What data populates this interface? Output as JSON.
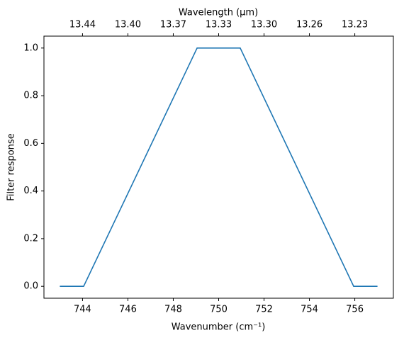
{
  "chart_data": {
    "type": "line",
    "xlabel": "Wavenumber (cm⁻¹)",
    "ylabel": "Filter response",
    "x2label": "Wavelength (μm)",
    "x": [
      743,
      744.05,
      749.05,
      750.95,
      755.95,
      757
    ],
    "series": [
      {
        "color": "#1f77b4",
        "values": [
          0,
          0,
          1,
          1,
          0,
          0
        ]
      }
    ],
    "xlim": [
      742.3,
      757.7
    ],
    "ylim": [
      -0.05,
      1.05
    ],
    "xticks": [
      744,
      746,
      748,
      750,
      752,
      754,
      756
    ],
    "yticks": [
      {
        "value": 0,
        "label": "0.0"
      },
      {
        "value": 0.2,
        "label": "0.2"
      },
      {
        "value": 0.4,
        "label": "0.4"
      },
      {
        "value": 0.6,
        "label": "0.6"
      },
      {
        "value": 0.8,
        "label": "0.8"
      },
      {
        "value": 1,
        "label": "1.0"
      }
    ],
    "x2ticks": [
      {
        "value": 744,
        "label": "13.44"
      },
      {
        "value": 746,
        "label": "13.40"
      },
      {
        "value": 748,
        "label": "13.37"
      },
      {
        "value": 750,
        "label": "13.33"
      },
      {
        "value": 752,
        "label": "13.30"
      },
      {
        "value": 754,
        "label": "13.26"
      },
      {
        "value": 756,
        "label": "13.23"
      }
    ]
  }
}
